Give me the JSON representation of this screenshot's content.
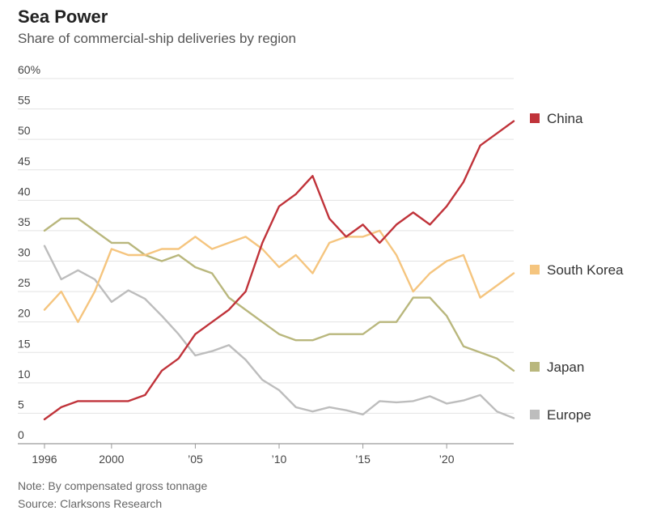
{
  "chart_data": {
    "type": "line",
    "title": "Sea Power",
    "subtitle": "Share of commercial-ship deliveries by region",
    "xlabel": "",
    "ylabel": "",
    "xlim": [
      1996,
      2024
    ],
    "ylim": [
      0,
      60
    ],
    "grid": true,
    "y_ticks": [
      {
        "value": 0,
        "label": "0"
      },
      {
        "value": 5,
        "label": "5"
      },
      {
        "value": 10,
        "label": "10"
      },
      {
        "value": 15,
        "label": "15"
      },
      {
        "value": 20,
        "label": "20"
      },
      {
        "value": 25,
        "label": "25"
      },
      {
        "value": 30,
        "label": "30"
      },
      {
        "value": 35,
        "label": "35"
      },
      {
        "value": 40,
        "label": "40"
      },
      {
        "value": 45,
        "label": "45"
      },
      {
        "value": 50,
        "label": "50"
      },
      {
        "value": 55,
        "label": "55"
      },
      {
        "value": 60,
        "label": "60%"
      }
    ],
    "x_ticks": [
      {
        "value": 1996,
        "label": "1996"
      },
      {
        "value": 2000,
        "label": "2000"
      },
      {
        "value": 2005,
        "label": "’05"
      },
      {
        "value": 2010,
        "label": "’10"
      },
      {
        "value": 2015,
        "label": "’15"
      },
      {
        "value": 2020,
        "label": "’20"
      }
    ],
    "x": [
      1996,
      1997,
      1998,
      1999,
      2000,
      2001,
      2002,
      2003,
      2004,
      2005,
      2006,
      2007,
      2008,
      2009,
      2010,
      2011,
      2012,
      2013,
      2014,
      2015,
      2016,
      2017,
      2018,
      2019,
      2020,
      2021,
      2022,
      2023,
      2024
    ],
    "series": [
      {
        "name": "China",
        "color": "#c0333a",
        "values": [
          4,
          6,
          7,
          7,
          7,
          7,
          8,
          12,
          14,
          18,
          20,
          22,
          25,
          33,
          39,
          41,
          44,
          37,
          34,
          36,
          33,
          36,
          38,
          36,
          39,
          43,
          49,
          51,
          53
        ]
      },
      {
        "name": "South Korea",
        "color": "#f5c57f",
        "values": [
          22,
          25,
          20,
          25,
          32,
          31,
          31,
          32,
          32,
          34,
          32,
          33,
          34,
          32,
          29,
          31,
          28,
          33,
          34,
          34,
          35,
          31,
          25,
          28,
          30,
          31,
          24,
          26,
          28
        ]
      },
      {
        "name": "Japan",
        "color": "#b9b77d",
        "values": [
          35,
          37,
          37,
          35,
          33,
          33,
          31,
          30,
          31,
          29,
          28,
          24,
          22,
          20,
          18,
          17,
          17,
          18,
          18,
          18,
          20,
          20,
          24,
          24,
          21,
          16,
          15,
          14,
          12
        ]
      },
      {
        "name": "Europe",
        "color": "#bdbdbd",
        "values": [
          32.5,
          27,
          28.5,
          27,
          23.3,
          25.2,
          23.8,
          21,
          18,
          14.5,
          15.2,
          16.2,
          13.8,
          10.5,
          8.8,
          6,
          5.3,
          6,
          5.5,
          4.8,
          7,
          6.8,
          7,
          7.8,
          6.6,
          7.1,
          8,
          5.3,
          4.2
        ]
      }
    ],
    "note": "Note: By compensated gross tonnage",
    "source": "Source: Clarksons Research"
  }
}
